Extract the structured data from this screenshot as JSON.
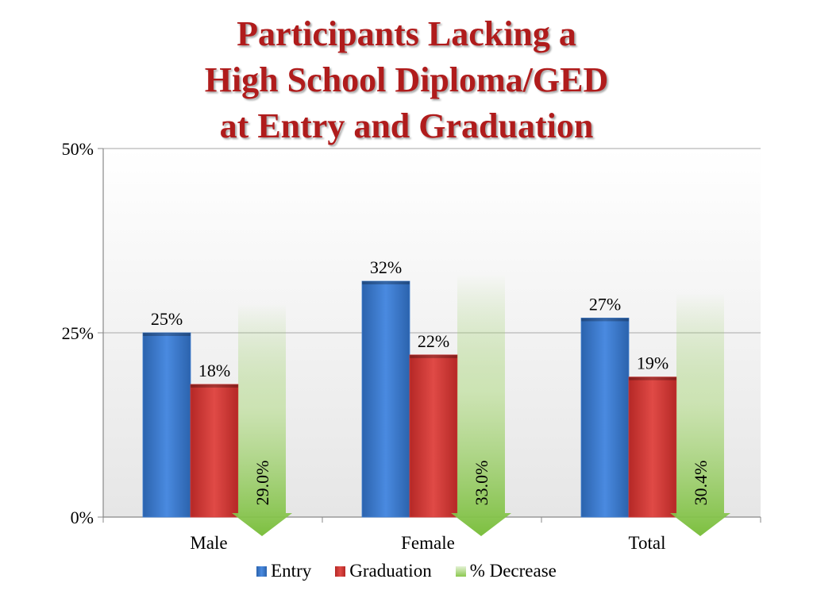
{
  "title_lines": [
    "Participants Lacking a",
    "High School Diploma/GED",
    "at Entry and Graduation"
  ],
  "colors": {
    "entry": "#3f7fd1",
    "graduation": "#d63c3a",
    "decrease": "#8bc84f",
    "title": "#b01c1c"
  },
  "chart_data": {
    "type": "bar",
    "title": "Participants Lacking a High School Diploma/GED at Entry and Graduation",
    "categories": [
      "Male",
      "Female",
      "Total"
    ],
    "series": [
      {
        "name": "Entry",
        "values": [
          25,
          32,
          27
        ],
        "labels": [
          "25%",
          "32%",
          "27%"
        ]
      },
      {
        "name": "Graduation",
        "values": [
          18,
          22,
          19
        ],
        "labels": [
          "18%",
          "22%",
          "19%"
        ]
      },
      {
        "name": "% Decrease",
        "values": [
          29.0,
          33.0,
          30.4
        ],
        "labels": [
          "29.0%",
          "33.0%",
          "30.4%"
        ]
      }
    ],
    "y_ticks": [
      {
        "value": 0,
        "label": "0%"
      },
      {
        "value": 25,
        "label": "25%"
      },
      {
        "value": 50,
        "label": "50%"
      }
    ],
    "ylim": [
      0,
      50
    ],
    "grid": true,
    "legend_position": "bottom"
  }
}
